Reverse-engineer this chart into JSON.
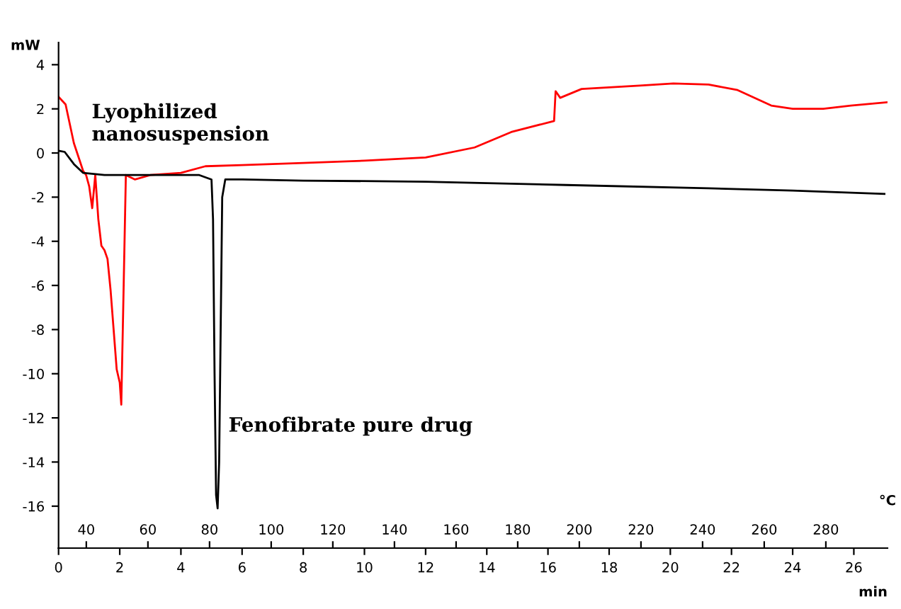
{
  "chart_data": {
    "type": "line",
    "xlabel": "min",
    "x2label": "°C",
    "ylabel": "mW",
    "xlim": [
      0,
      27.1
    ],
    "xticks": [
      0,
      2,
      4,
      6,
      8,
      10,
      12,
      14,
      16,
      18,
      20,
      22,
      24,
      26
    ],
    "x2lim": [
      31,
      300
    ],
    "x2ticks": [
      40,
      60,
      80,
      100,
      120,
      140,
      160,
      180,
      200,
      220,
      240,
      260,
      280
    ],
    "ylim": [
      -17.9,
      5.0
    ],
    "yticks": [
      -16,
      -14,
      -12,
      -10,
      -8,
      -6,
      -4,
      -2,
      0,
      2,
      4
    ],
    "grid": false,
    "legend": false,
    "marker": "none",
    "line_style": "solid",
    "series": [
      {
        "name": "Lyophilized\nnanosuspension",
        "color": "#ff0000",
        "x": [
          0,
          0.23,
          0.5,
          0.8,
          0.9,
          1.0,
          1.1,
          1.2,
          1.3,
          1.4,
          1.5,
          1.6,
          1.7,
          1.8,
          1.9,
          2.0,
          2.05,
          2.1,
          2.2,
          2.5,
          3.0,
          4.0,
          4.8,
          6.0,
          8.0,
          10.0,
          12.0,
          13.6,
          14.8,
          16.2,
          16.25,
          16.4,
          17.1,
          19.0,
          20.1,
          21.25,
          22.2,
          23.3,
          24.0,
          25.0,
          25.9,
          27.1
        ],
        "values": [
          2.55,
          2.2,
          0.45,
          -0.8,
          -1.0,
          -1.5,
          -2.5,
          -1.0,
          -3.0,
          -4.2,
          -4.4,
          -4.8,
          -6.2,
          -8.0,
          -9.8,
          -10.4,
          -11.4,
          -8.0,
          -1.0,
          -1.2,
          -1.0,
          -0.9,
          -0.6,
          -0.55,
          -0.45,
          -0.35,
          -0.2,
          0.25,
          0.95,
          1.45,
          2.8,
          2.5,
          2.9,
          3.05,
          3.15,
          3.1,
          2.85,
          2.15,
          2.0,
          2.0,
          2.15,
          2.3
        ]
      },
      {
        "name": "Fenofibrate pure drug",
        "color": "#000000",
        "x": [
          0,
          0.2,
          0.5,
          0.8,
          1.5,
          3.0,
          4.6,
          5.0,
          5.05,
          5.1,
          5.15,
          5.2,
          5.25,
          5.3,
          5.35,
          5.45,
          6.0,
          8.0,
          12.0,
          16.6,
          21.25,
          24.0,
          27.0
        ],
        "values": [
          0.1,
          0.05,
          -0.5,
          -0.9,
          -1.0,
          -1.0,
          -1.0,
          -1.2,
          -3.0,
          -10.0,
          -15.5,
          -16.1,
          -14.0,
          -8.0,
          -2.0,
          -1.2,
          -1.2,
          -1.25,
          -1.3,
          -1.45,
          -1.6,
          -1.7,
          -1.85
        ]
      }
    ]
  }
}
